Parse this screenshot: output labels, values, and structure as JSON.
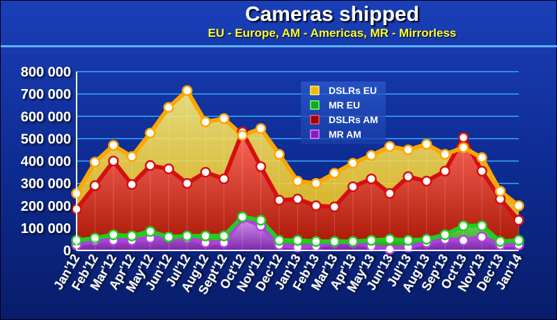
{
  "header": {
    "title": "Cameras shipped",
    "subtitle": "EU - Europe, AM - Americas, MR - Mirrorless"
  },
  "chart_data": {
    "type": "area",
    "title": "Cameras shipped",
    "subtitle": "EU - Europe, AM - Americas, MR - Mirrorless",
    "stacked": true,
    "categories": [
      "Jan'12",
      "Feb'12",
      "Mar'12",
      "Apr'12",
      "May'12",
      "Jun'12",
      "Jul'12",
      "Aug'12",
      "Sept'12",
      "Oct'12",
      "Nov'12",
      "Dec'12",
      "Jan'13",
      "Feb'13",
      "Mar'13",
      "Apr'13",
      "May'13",
      "Jun'13",
      "Jul'13",
      "Aug'13",
      "Sep'13",
      "Oct'13",
      "Nov'13",
      "Dec'13",
      "Jan'14"
    ],
    "ylim": [
      0,
      800000
    ],
    "yticks": [
      0,
      100000,
      200000,
      300000,
      400000,
      500000,
      600000,
      700000,
      800000
    ],
    "ytick_labels": [
      "0",
      "100 000",
      "200 000",
      "300 000",
      "400 000",
      "500 000",
      "600 000",
      "700 000",
      "800 000"
    ],
    "grid": true,
    "legend_position": "top-center",
    "cumulative_levels": [
      {
        "name": "MR AM",
        "color": "#b040e0",
        "values": [
          25000,
          45000,
          45000,
          45000,
          55000,
          60000,
          55000,
          35000,
          35000,
          145000,
          110000,
          25000,
          15000,
          20000,
          35000,
          35000,
          20000,
          5000,
          15000,
          35000,
          50000,
          45000,
          60000,
          25000,
          25000
        ]
      },
      {
        "name": "MR EU",
        "color": "#22cc22",
        "values": [
          45000,
          55000,
          70000,
          65000,
          85000,
          60000,
          65000,
          65000,
          65000,
          150000,
          135000,
          45000,
          45000,
          40000,
          40000,
          40000,
          45000,
          50000,
          45000,
          50000,
          70000,
          110000,
          110000,
          40000,
          45000
        ]
      },
      {
        "name": "DSLRs AM",
        "color": "#d41010",
        "values": [
          185000,
          290000,
          400000,
          295000,
          380000,
          365000,
          300000,
          350000,
          320000,
          530000,
          375000,
          225000,
          230000,
          200000,
          195000,
          285000,
          320000,
          255000,
          330000,
          310000,
          355000,
          505000,
          355000,
          230000,
          135000
        ]
      },
      {
        "name": "DSLRs EU",
        "color": "#ffa500",
        "values": [
          255000,
          395000,
          470000,
          420000,
          525000,
          640000,
          715000,
          575000,
          590000,
          515000,
          545000,
          430000,
          310000,
          300000,
          345000,
          390000,
          425000,
          465000,
          450000,
          475000,
          430000,
          460000,
          415000,
          265000,
          200000
        ]
      }
    ],
    "legend_order": [
      "DSLRs EU",
      "MR EU",
      "DSLRs AM",
      "MR AM"
    ]
  }
}
